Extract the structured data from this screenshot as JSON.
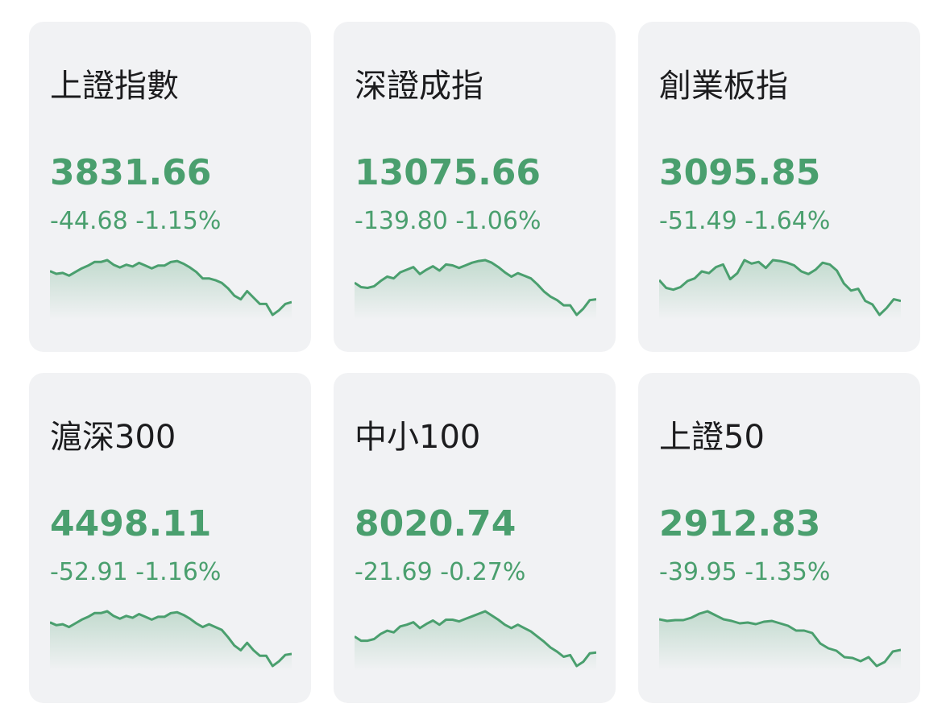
{
  "colors": {
    "down": "#4a9f6e",
    "card_bg": "#f1f2f4",
    "title": "#1c1c1e"
  },
  "cards": [
    {
      "name": "上證指數",
      "price": "3831.66",
      "change": "-44.68",
      "percent": "-1.15%",
      "sparkline": [
        63,
        60,
        61,
        58,
        62,
        66,
        69,
        73,
        73,
        75,
        70,
        67,
        70,
        68,
        72,
        69,
        66,
        69,
        69,
        73,
        74,
        71,
        67,
        62,
        55,
        55,
        53,
        50,
        44,
        36,
        32,
        41,
        34,
        27,
        27,
        15,
        20,
        27,
        29
      ]
    },
    {
      "name": "深證成指",
      "price": "13075.66",
      "change": "-139.80",
      "percent": "-1.06%",
      "sparkline": [
        50,
        45,
        44,
        46,
        52,
        57,
        55,
        62,
        65,
        68,
        60,
        65,
        69,
        64,
        71,
        70,
        67,
        70,
        73,
        75,
        76,
        73,
        68,
        62,
        57,
        61,
        58,
        55,
        48,
        40,
        34,
        30,
        24,
        24,
        13,
        20,
        30,
        31
      ]
    },
    {
      "name": "創業板指",
      "price": "3095.85",
      "change": "-51.49",
      "percent": "-1.64%",
      "sparkline": [
        52,
        43,
        41,
        44,
        51,
        54,
        62,
        60,
        67,
        70,
        53,
        60,
        75,
        71,
        73,
        66,
        75,
        74,
        72,
        69,
        62,
        59,
        64,
        72,
        70,
        63,
        48,
        40,
        42,
        28,
        24,
        12,
        20,
        30,
        28
      ]
    },
    {
      "name": "滬深300",
      "price": "4498.11",
      "change": "-52.91",
      "percent": "-1.16%",
      "sparkline": [
        63,
        60,
        61,
        58,
        62,
        66,
        69,
        73,
        73,
        75,
        70,
        67,
        70,
        68,
        72,
        69,
        66,
        69,
        69,
        73,
        74,
        71,
        67,
        62,
        58,
        61,
        58,
        55,
        47,
        38,
        33,
        41,
        33,
        27,
        27,
        16,
        21,
        28,
        29
      ]
    },
    {
      "name": "中小100",
      "price": "8020.74",
      "change": "-21.69",
      "percent": "-0.27%",
      "sparkline": [
        50,
        45,
        45,
        47,
        53,
        57,
        55,
        62,
        64,
        67,
        60,
        65,
        69,
        64,
        70,
        70,
        68,
        71,
        74,
        77,
        80,
        75,
        70,
        64,
        60,
        64,
        60,
        56,
        50,
        44,
        37,
        32,
        26,
        28,
        15,
        20,
        30,
        31
      ]
    },
    {
      "name": "上證50",
      "price": "2912.83",
      "change": "-39.95",
      "percent": "-1.35%",
      "sparkline": [
        70,
        68,
        69,
        69,
        72,
        77,
        80,
        75,
        70,
        68,
        65,
        66,
        64,
        67,
        68,
        65,
        62,
        56,
        56,
        53,
        40,
        34,
        31,
        23,
        22,
        18,
        23,
        12,
        17,
        30,
        32
      ]
    }
  ]
}
